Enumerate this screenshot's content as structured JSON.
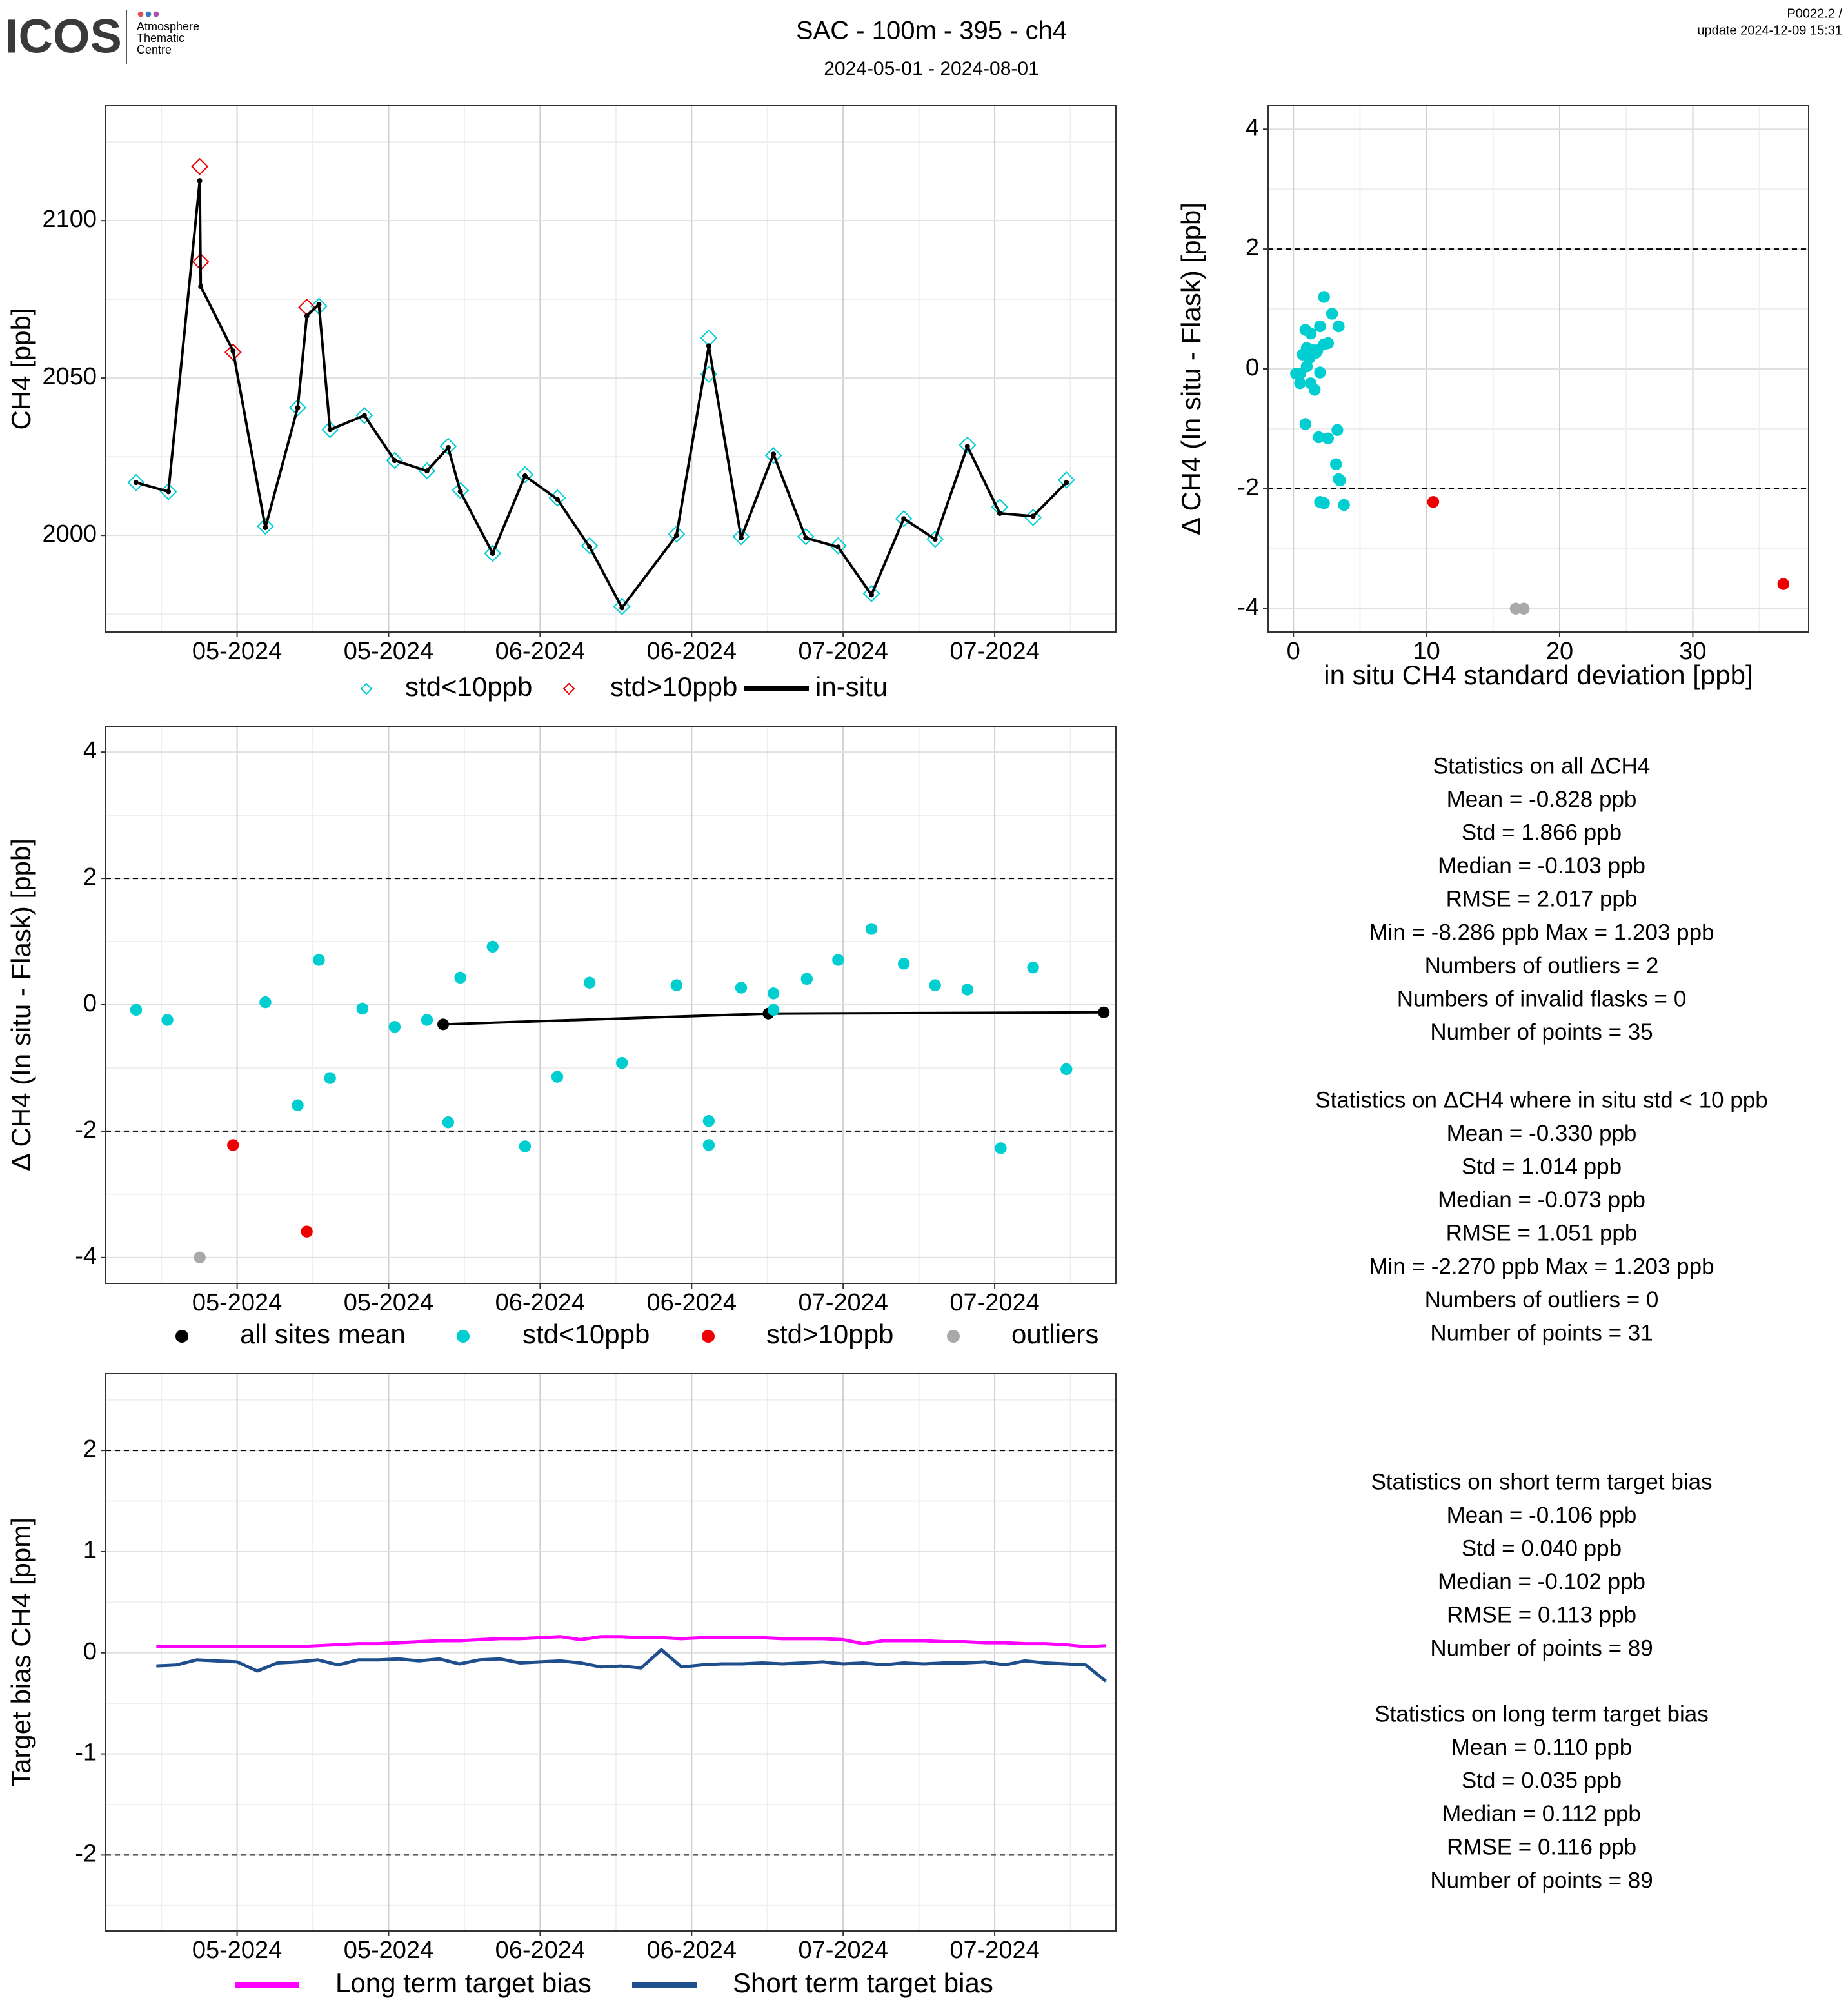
{
  "header": {
    "logo": "ICOS",
    "centre": [
      "Atmosphere",
      "Thematic",
      "Centre"
    ],
    "title": "SAC - 100m - 395 - ch4",
    "subtitle": "2024-05-01 - 2024-08-01",
    "version": "P0022.2 /",
    "update": "update  2024-12-09 15:31"
  },
  "chart_data": [
    {
      "type": "scatter",
      "ylabel": "CH4 [ppb]",
      "xlim": [
        -13,
        87
      ],
      "ylim": [
        1969.3,
        2136.5
      ],
      "xticks": [
        {
          "value": 0,
          "label": "05-2024"
        },
        {
          "value": 15,
          "label": "05-2024"
        },
        {
          "value": 30,
          "label": "06-2024"
        },
        {
          "value": 45,
          "label": "06-2024"
        },
        {
          "value": 60,
          "label": "07-2024"
        },
        {
          "value": 75,
          "label": "07-2024"
        }
      ],
      "yticks": [
        2000,
        2050,
        2100
      ],
      "grid": true,
      "series": [
        {
          "name": "std<10ppb",
          "style": "diamond",
          "color": "#00CED1",
          "x": [
            -10.0,
            -6.8,
            2.8,
            6.0,
            8.1,
            9.2,
            12.6,
            15.6,
            18.8,
            20.9,
            22.1,
            25.3,
            28.5,
            31.7,
            34.9,
            38.1,
            43.5,
            46.7,
            46.7,
            49.9,
            53.1,
            56.3,
            59.5,
            62.8,
            66.0,
            69.1,
            72.3,
            75.5,
            78.8,
            82.1
          ],
          "values": [
            2016.8,
            2013.9,
            2002.9,
            2040.6,
            2072.8,
            2033.6,
            2038.1,
            2023.8,
            2020.5,
            2028.3,
            2014.3,
            1994.3,
            2019.3,
            2011.9,
            1996.7,
            1977.4,
            2000.4,
            2062.7,
            2051.2,
            1999.6,
            2025.4,
            1999.6,
            1996.7,
            1981.5,
            2005.3,
            1998.8,
            2028.7,
            2009.0,
            2005.7,
            2017.6
          ]
        },
        {
          "name": "std>10ppb",
          "style": "diamond",
          "color": "#EE0000",
          "x": [
            -3.7,
            -3.6,
            -0.4,
            6.9
          ],
          "values": [
            2117.2,
            2086.9,
            2058.2,
            2072.5
          ]
        },
        {
          "name": "in-situ",
          "style": "line-points",
          "color": "#000000",
          "x": [
            -10.0,
            -6.8,
            -3.7,
            -3.6,
            -0.4,
            2.8,
            6.0,
            6.9,
            8.1,
            9.2,
            12.6,
            15.6,
            18.8,
            20.9,
            22.1,
            25.3,
            28.5,
            31.7,
            34.9,
            38.1,
            43.5,
            46.7,
            49.9,
            53.1,
            56.3,
            59.5,
            62.8,
            66.0,
            69.1,
            72.3,
            75.5,
            78.8,
            82.1
          ],
          "values": [
            2016.8,
            2013.9,
            2112.7,
            2079.1,
            2058.6,
            2002.5,
            2040.6,
            2069.7,
            2073.4,
            2033.6,
            2038.1,
            2023.8,
            2020.5,
            2027.9,
            2013.9,
            1994.3,
            2018.9,
            2011.5,
            1996.3,
            1977.0,
            2000.0,
            2060.2,
            1999.2,
            2025.8,
            1999.2,
            1996.3,
            1981.1,
            2005.3,
            1998.8,
            2028.3,
            2007.0,
            2006.1,
            2016.8
          ]
        }
      ]
    },
    {
      "type": "scatter",
      "ylabel": "Δ CH4 (In situ - Flask) [ppb]",
      "xlim": [
        -13,
        87
      ],
      "ylim": [
        -4.41,
        4.41
      ],
      "xticks": [
        {
          "value": 0,
          "label": "05-2024"
        },
        {
          "value": 15,
          "label": "05-2024"
        },
        {
          "value": 30,
          "label": "06-2024"
        },
        {
          "value": 45,
          "label": "06-2024"
        },
        {
          "value": 60,
          "label": "07-2024"
        },
        {
          "value": 75,
          "label": "07-2024"
        }
      ],
      "yticks": [
        -4,
        -2,
        0,
        2,
        4
      ],
      "grid": true,
      "reference_lines": [
        2,
        -2
      ],
      "series": [
        {
          "name": "all sites mean",
          "style": "line-points",
          "color": "#000000",
          "x": [
            20.4,
            52.6,
            85.8
          ],
          "values": [
            -0.31,
            -0.14,
            -0.12
          ]
        },
        {
          "name": "std<10ppb",
          "style": "point",
          "color": "#00CED1",
          "x": [
            -10.0,
            -6.9,
            2.8,
            6.0,
            8.1,
            9.2,
            12.4,
            15.6,
            18.8,
            20.9,
            22.1,
            25.3,
            28.5,
            31.7,
            34.9,
            38.1,
            43.5,
            46.7,
            46.7,
            49.9,
            53.1,
            53.1,
            56.4,
            59.5,
            62.8,
            66.0,
            69.1,
            72.3,
            75.6,
            78.8,
            82.1
          ],
          "values": [
            -0.08,
            -0.24,
            0.04,
            -1.59,
            0.71,
            -1.16,
            -0.06,
            -0.35,
            -0.24,
            -1.86,
            0.43,
            0.92,
            -2.24,
            -1.14,
            0.35,
            -0.92,
            0.31,
            -1.84,
            -2.22,
            0.27,
            0.18,
            -0.08,
            0.41,
            0.71,
            1.2,
            0.65,
            0.31,
            0.24,
            -2.27,
            0.59,
            -1.02
          ]
        },
        {
          "name": "std>10ppb",
          "style": "point",
          "color": "#EE0000",
          "x": [
            -0.4,
            6.9
          ],
          "values": [
            -2.22,
            -3.59
          ]
        },
        {
          "name": "outliers",
          "style": "point",
          "color": "#A9A9A9",
          "x": [
            -3.7
          ],
          "values": [
            -4.0
          ]
        }
      ]
    },
    {
      "type": "scatter",
      "ylabel": "Δ CH4 (In situ - Flask) [ppb]",
      "xlabel": "in situ CH4 standard deviation [ppb]",
      "xlim": [
        -1.9,
        38.7
      ],
      "ylim": [
        -4.39,
        4.39
      ],
      "xticks": [
        0,
        10,
        20,
        30
      ],
      "yticks": [
        -4,
        -2,
        0,
        2,
        4
      ],
      "grid": true,
      "reference_lines": [
        2,
        -2
      ],
      "series": [
        {
          "name": "std<10ppb",
          "style": "point",
          "color": "#00CED1",
          "x": [
            0.5,
            1.3,
            1.0,
            3.2,
            2.0,
            2.6,
            2.0,
            1.6,
            0.5,
            3.5,
            2.6,
            2.9,
            2.3,
            1.9,
            1.0,
            0.9,
            1.5,
            3.4,
            2.0,
            1.7,
            1.2,
            0.2,
            2.3,
            3.4,
            2.3,
            0.9,
            1.8,
            0.7,
            3.8,
            1.3,
            3.3
          ],
          "values": [
            -0.08,
            -0.24,
            0.04,
            -1.59,
            0.71,
            -1.16,
            -0.06,
            -0.35,
            -0.24,
            -1.86,
            0.43,
            0.92,
            -2.24,
            -1.14,
            0.35,
            -0.92,
            0.31,
            -1.84,
            -2.22,
            0.27,
            0.18,
            -0.08,
            0.41,
            0.71,
            1.2,
            0.65,
            0.31,
            0.24,
            -2.27,
            0.59,
            -1.02
          ]
        },
        {
          "name": "std>10ppb",
          "style": "point",
          "color": "#EE0000",
          "x": [
            10.5,
            36.8
          ],
          "values": [
            -2.22,
            -3.59
          ]
        },
        {
          "name": "outliers",
          "style": "point",
          "color": "#A9A9A9",
          "x": [
            16.7,
            17.3
          ],
          "values": [
            -4.0,
            -4.0
          ]
        }
      ]
    },
    {
      "type": "line",
      "ylabel": "Target bias CH4 [ppm]",
      "xlim": [
        -13,
        87
      ],
      "ylim": [
        -2.75,
        2.76
      ],
      "xticks": [
        {
          "value": 0,
          "label": "05-2024"
        },
        {
          "value": 15,
          "label": "05-2024"
        },
        {
          "value": 30,
          "label": "06-2024"
        },
        {
          "value": 45,
          "label": "06-2024"
        },
        {
          "value": 60,
          "label": "07-2024"
        },
        {
          "value": 75,
          "label": "07-2024"
        }
      ],
      "yticks": [
        -2,
        -1,
        0,
        1,
        2
      ],
      "grid": true,
      "reference_lines": [
        2,
        -2
      ],
      "series": [
        {
          "name": "Long term target bias",
          "style": "line",
          "color": "#FF00FF",
          "x": [
            -8,
            -6,
            -4,
            -2,
            0,
            2,
            4,
            6,
            8,
            10,
            12,
            14,
            16,
            18,
            20,
            22,
            24,
            26,
            28,
            30,
            32,
            34,
            36,
            38,
            40,
            42,
            44,
            46,
            48,
            50,
            52,
            54,
            56,
            58,
            60,
            62,
            64,
            66,
            68,
            70,
            72,
            74,
            76,
            78,
            80,
            82,
            84,
            86
          ],
          "values": [
            0.06,
            0.06,
            0.06,
            0.06,
            0.06,
            0.06,
            0.06,
            0.06,
            0.07,
            0.08,
            0.09,
            0.09,
            0.1,
            0.11,
            0.12,
            0.12,
            0.13,
            0.14,
            0.14,
            0.15,
            0.16,
            0.13,
            0.16,
            0.16,
            0.15,
            0.15,
            0.14,
            0.15,
            0.15,
            0.15,
            0.15,
            0.14,
            0.14,
            0.14,
            0.13,
            0.09,
            0.12,
            0.12,
            0.12,
            0.11,
            0.11,
            0.1,
            0.1,
            0.09,
            0.09,
            0.08,
            0.06,
            0.07
          ]
        },
        {
          "name": "Short term target bias",
          "style": "line",
          "color": "#1F4E8C",
          "x": [
            -8,
            -6,
            -4,
            -2,
            0,
            2,
            4,
            6,
            8,
            10,
            12,
            14,
            16,
            18,
            20,
            22,
            24,
            26,
            28,
            30,
            32,
            34,
            36,
            38,
            40,
            42,
            44,
            46,
            48,
            50,
            52,
            54,
            56,
            58,
            60,
            62,
            64,
            66,
            68,
            70,
            72,
            74,
            76,
            78,
            80,
            82,
            84,
            86
          ],
          "values": [
            -0.13,
            -0.12,
            -0.07,
            -0.08,
            -0.09,
            -0.18,
            -0.1,
            -0.09,
            -0.07,
            -0.12,
            -0.07,
            -0.07,
            -0.06,
            -0.08,
            -0.06,
            -0.11,
            -0.07,
            -0.06,
            -0.1,
            -0.09,
            -0.08,
            -0.1,
            -0.14,
            -0.13,
            -0.15,
            0.03,
            -0.14,
            -0.12,
            -0.11,
            -0.11,
            -0.1,
            -0.11,
            -0.1,
            -0.09,
            -0.11,
            -0.1,
            -0.12,
            -0.1,
            -0.11,
            -0.1,
            -0.1,
            -0.09,
            -0.12,
            -0.08,
            -0.1,
            -0.11,
            -0.12,
            -0.28
          ]
        }
      ]
    }
  ],
  "statistics": [
    [
      "Statistics on all ΔCH4",
      "Mean =  -0.828 ppb",
      "Std =  1.866 ppb",
      "Median =  -0.103 ppb",
      "RMSE =  2.017 ppb",
      "Min =  -8.286 ppb Max =  1.203 ppb",
      "Numbers of outliers =  2",
      "Numbers of invalid flasks =  0",
      "Number of points =  35"
    ],
    [
      "Statistics on ΔCH4 where in situ std < 10 ppb",
      "Mean =  -0.330 ppb",
      "Std =  1.014 ppb",
      "Median =  -0.073 ppb",
      "RMSE =  1.051 ppb",
      "Min =  -2.270 ppb Max =  1.203 ppb",
      "Numbers of outliers =  0",
      "Number of points =  31"
    ],
    [
      "Statistics on short term target bias",
      "Mean =  -0.106 ppb",
      "Std =  0.040 ppb",
      "Median =  -0.102 ppb",
      "RMSE =  0.113 ppb",
      "Number of points =  89"
    ],
    [
      "Statistics on long term target bias",
      "Mean =  0.110 ppb",
      "Std =  0.035 ppb",
      "Median =  0.112 ppb",
      "RMSE =  0.116 ppb",
      "Number of points =  89"
    ]
  ]
}
